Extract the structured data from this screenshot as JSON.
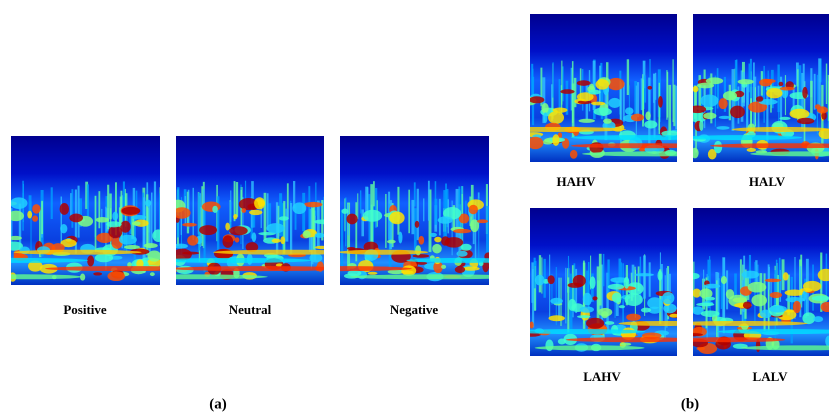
{
  "figure": {
    "panel_a": {
      "label": "(a)",
      "images": [
        {
          "caption": "Positive"
        },
        {
          "caption": "Neutral"
        },
        {
          "caption": "Negative"
        }
      ]
    },
    "panel_b": {
      "label": "(b)",
      "images": [
        {
          "caption": "HAHV"
        },
        {
          "caption": "HALV"
        },
        {
          "caption": "LAHV"
        },
        {
          "caption": "LALV"
        }
      ]
    }
  }
}
